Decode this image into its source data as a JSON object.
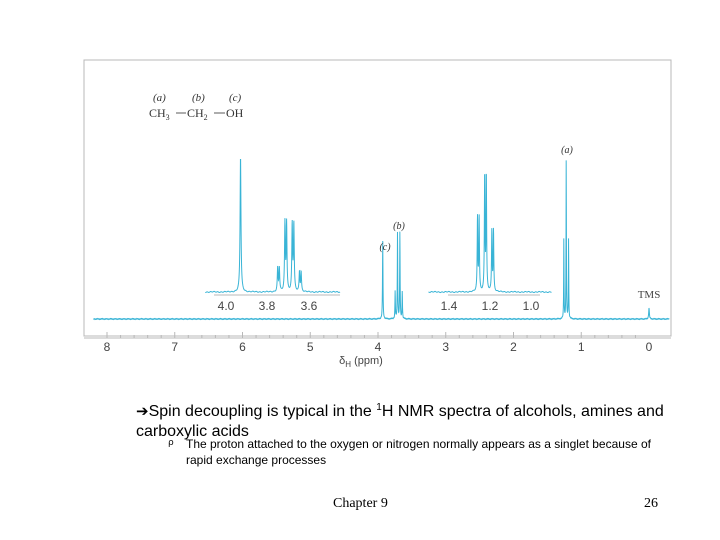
{
  "chart_data": {
    "type": "line",
    "title": "",
    "xlabel_symbol": "δ",
    "xlabel_sub": "H",
    "xlabel_unit": "(ppm)",
    "xlim": [
      8.2,
      -0.3
    ],
    "xticks": [
      "8",
      "7",
      "6",
      "5",
      "4",
      "3",
      "2",
      "1",
      "0"
    ],
    "structure": {
      "labels": [
        "(a)",
        "(b)",
        "(c)"
      ],
      "groups": [
        "CH3",
        "CH2",
        "OH"
      ]
    },
    "peaks": [
      {
        "label": "(c)",
        "group": "OH",
        "shift": 3.93,
        "multiplicity": "singlet"
      },
      {
        "label": "(b)",
        "group": "CH2",
        "shift": 3.69,
        "multiplicity": "quartet"
      },
      {
        "label": "(a)",
        "group": "CH3",
        "shift": 1.22,
        "multiplicity": "triplet"
      },
      {
        "label": "TMS",
        "group": "TMS",
        "shift": 0.0,
        "multiplicity": "singlet"
      }
    ],
    "insets": [
      {
        "xticks": [
          "4.0",
          "3.8",
          "3.6"
        ],
        "xlim": [
          4.1,
          3.45
        ]
      },
      {
        "xticks": [
          "1.4",
          "1.2",
          "1.0"
        ],
        "xlim": [
          1.5,
          0.9
        ]
      }
    ],
    "colors": {
      "trace": "#39b4d6",
      "frame": "#b8b8b8"
    }
  },
  "text": {
    "bullet_arrow": "➔",
    "bullet_main_1": "Spin decoupling is typical in the ",
    "bullet_sup": "1",
    "bullet_main_2": "H NMR spectra of alcohols, amines and carboxylic acids",
    "sub_marker": "ρ",
    "sub_bullet": "The proton attached to the oxygen or nitrogen normally appears as a singlet because of rapid exchange processes",
    "footer_chapter": "Chapter 9",
    "footer_page": "26"
  }
}
